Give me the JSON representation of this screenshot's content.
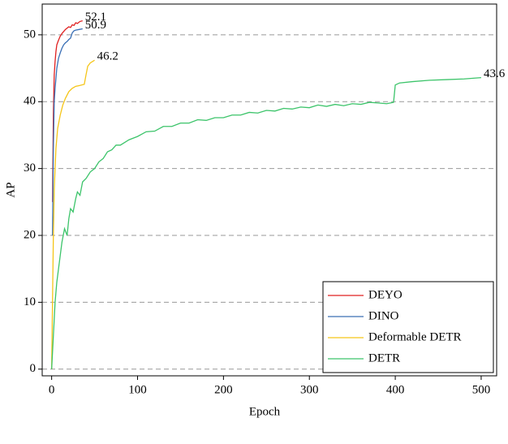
{
  "chart_data": {
    "type": "line",
    "xlabel": "Epoch",
    "ylabel": "AP",
    "xlim": [
      -11,
      518
    ],
    "ylim": [
      -1,
      54.6
    ],
    "xticks": [
      0,
      100,
      200,
      300,
      400,
      500
    ],
    "yticks": [
      0,
      10,
      20,
      30,
      40,
      50
    ],
    "grid": true,
    "legend": "lower right",
    "series": [
      {
        "name": "DEYO",
        "color": "#e02020",
        "x": [
          1,
          2,
          3,
          4,
          5,
          6,
          8,
          10,
          12,
          14,
          16,
          18,
          20,
          22,
          24,
          26,
          28,
          30,
          33,
          36
        ],
        "values": [
          25,
          38,
          44,
          46,
          47.5,
          48.5,
          49.2,
          49.8,
          50.2,
          50.5,
          50.8,
          51,
          51.2,
          51.1,
          51.5,
          51.4,
          51.8,
          51.7,
          52,
          52.1
        ]
      },
      {
        "name": "DINO",
        "color": "#3a6fb5",
        "x": [
          1,
          2,
          3,
          4,
          5,
          6,
          8,
          10,
          12,
          14,
          16,
          18,
          20,
          22,
          24,
          26,
          28,
          32,
          36
        ],
        "values": [
          20,
          33,
          40,
          42,
          43.5,
          45,
          46.5,
          47.3,
          48,
          48.5,
          48.8,
          49,
          49.3,
          49.5,
          50.3,
          50.6,
          50.7,
          50.8,
          50.9
        ]
      },
      {
        "name": "Deformable DETR",
        "color": "#f5c518",
        "x": [
          0,
          1,
          2,
          3,
          5,
          7,
          10,
          13,
          16,
          20,
          24,
          28,
          32,
          38,
          40,
          42,
          45,
          50
        ],
        "values": [
          0,
          10,
          20,
          27,
          33,
          36,
          38,
          39.5,
          40.5,
          41.5,
          42,
          42.3,
          42.4,
          42.6,
          44,
          45.3,
          45.8,
          46.2
        ]
      },
      {
        "name": "DETR",
        "color": "#3cc46a",
        "x": [
          0,
          2,
          4,
          6,
          8,
          10,
          12,
          15,
          18,
          20,
          22,
          25,
          28,
          30,
          33,
          36,
          40,
          45,
          50,
          55,
          60,
          65,
          70,
          75,
          80,
          90,
          100,
          110,
          120,
          130,
          140,
          150,
          160,
          170,
          180,
          190,
          200,
          210,
          220,
          230,
          240,
          250,
          260,
          270,
          280,
          290,
          300,
          310,
          320,
          330,
          340,
          350,
          360,
          370,
          380,
          390,
          398,
          400,
          405,
          420,
          440,
          460,
          480,
          500
        ],
        "values": [
          0,
          5,
          10,
          13,
          15,
          17,
          19,
          21,
          20,
          22.5,
          24,
          23.5,
          25.5,
          26.5,
          26,
          28,
          28.5,
          29.5,
          30,
          31,
          31.5,
          32.5,
          32.8,
          33.5,
          33.5,
          34.3,
          34.8,
          35.5,
          35.6,
          36.3,
          36.3,
          36.8,
          36.8,
          37.3,
          37.2,
          37.6,
          37.6,
          38,
          38,
          38.4,
          38.3,
          38.7,
          38.6,
          39,
          38.9,
          39.2,
          39.1,
          39.5,
          39.3,
          39.6,
          39.4,
          39.7,
          39.6,
          39.9,
          39.8,
          39.7,
          39.9,
          42.5,
          42.8,
          43,
          43.2,
          43.3,
          43.4,
          43.6
        ]
      }
    ]
  }
}
